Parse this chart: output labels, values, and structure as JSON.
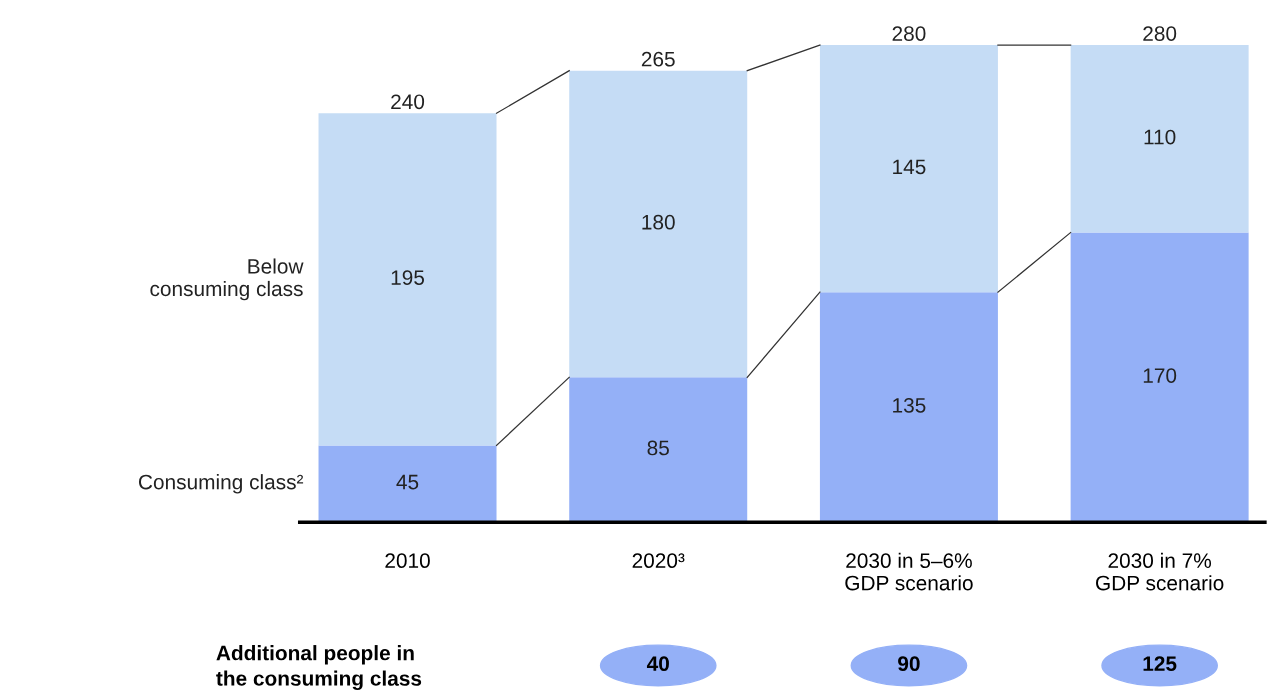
{
  "chart_data": {
    "type": "bar",
    "stacked": true,
    "categories": [
      "2010",
      "2020³",
      "2030 in 5–6%\nGDP scenario",
      "2030 in 7%\nGDP scenario"
    ],
    "series": [
      {
        "name": "Consuming class²",
        "color": "#94b0f7",
        "values": [
          45,
          85,
          135,
          170
        ]
      },
      {
        "name": "Below\nconsuming class",
        "color": "#c5dcf5",
        "values": [
          195,
          180,
          145,
          110
        ]
      }
    ],
    "data_labels": true,
    "totals": [
      "240",
      "265",
      "280",
      "280"
    ],
    "annotations": [
      "Additional people in\nthe consuming class",
      "40",
      "90",
      "125"
    ],
    "legend": "left"
  }
}
